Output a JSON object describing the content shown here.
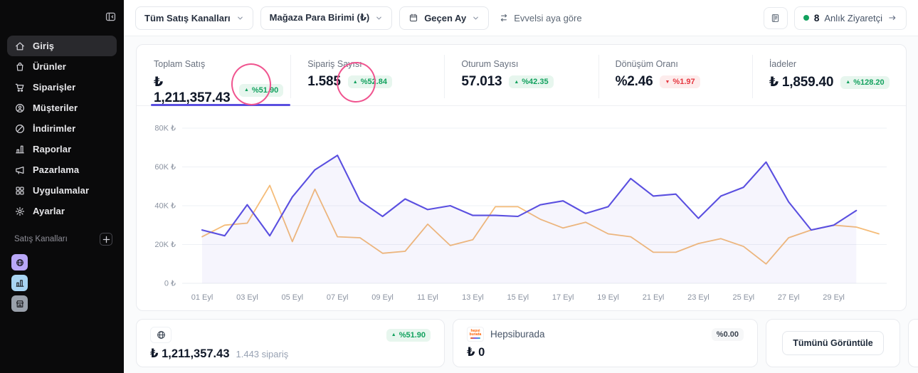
{
  "colors": {
    "purple": "#5a4fe0",
    "orange": "#f5bc78",
    "green": "#12a15e",
    "green-bg": "#e7f6ee",
    "red": "#e5363f",
    "red-bg": "#fdecec",
    "pink": "#f0548f",
    "sidebar-bg": "#0a0a0b"
  },
  "sidebar": {
    "items": [
      {
        "label": "Giriş",
        "icon": "home",
        "active": true
      },
      {
        "label": "Ürünler",
        "icon": "bag"
      },
      {
        "label": "Siparişler",
        "icon": "cart"
      },
      {
        "label": "Müşteriler",
        "icon": "customer"
      },
      {
        "label": "İndirimler",
        "icon": "discount"
      },
      {
        "label": "Raporlar",
        "icon": "bar-chart"
      },
      {
        "label": "Pazarlama",
        "icon": "megaphone"
      },
      {
        "label": "Uygulamalar",
        "icon": "apps-grid"
      },
      {
        "label": "Ayarlar",
        "icon": "gear"
      }
    ],
    "channels_label": "Satış Kanalları",
    "channels": [
      {
        "name": "online-store",
        "icon": "globe",
        "bg": "#b9a7f8"
      },
      {
        "name": "mobile-app",
        "icon": "chart-box",
        "bg": "#a8d4f2"
      },
      {
        "name": "physical-store",
        "icon": "storefront",
        "bg": "#9aa1ab"
      }
    ]
  },
  "topbar": {
    "filters": [
      {
        "label": "Tüm Satış Kanalları"
      },
      {
        "label": "Mağaza Para Birimi (₺)"
      },
      {
        "label": "Geçen Ay",
        "icon": "calendar"
      }
    ],
    "compare_label": "Evvelsi aya göre",
    "visitors": {
      "count": "8",
      "label": "Anlık Ziyaretçi"
    }
  },
  "stats": [
    {
      "label": "Toplam Satış",
      "value": "₺ 1,211,357.43",
      "arrow": "▲",
      "delta": "%51.90",
      "direction": "up",
      "annotated": true,
      "active": true
    },
    {
      "label": "Sipariş Sayısı",
      "value": "1.585",
      "arrow": "▲",
      "delta": "%52.84",
      "direction": "up",
      "annotated": true
    },
    {
      "label": "Oturum Sayısı",
      "value": "57.013",
      "arrow": "▲",
      "delta": "%42.35",
      "direction": "up"
    },
    {
      "label": "Dönüşüm Oranı",
      "value": "%2.46",
      "arrow": "▼",
      "delta": "%1.97",
      "direction": "down"
    },
    {
      "label": "İadeler",
      "value": "₺ 1,859.40",
      "arrow": "▲",
      "delta": "%128.20",
      "direction": "up"
    }
  ],
  "chart_data": {
    "type": "line",
    "ylim": [
      0,
      80000
    ],
    "yticks": [
      "0 ₺",
      "20K ₺",
      "40K ₺",
      "60K ₺",
      "80K ₺"
    ],
    "xticks": [
      "01 Eyl",
      "03 Eyl",
      "05 Eyl",
      "07 Eyl",
      "09 Eyl",
      "11 Eyl",
      "13 Eyl",
      "15 Eyl",
      "17 Eyl",
      "19 Eyl",
      "21 Eyl",
      "23 Eyl",
      "25 Eyl",
      "27 Eyl",
      "29 Eyl"
    ],
    "grid": true,
    "legend": "none",
    "series": [
      {
        "name": "Geçen Ay",
        "color": "#5a4fe0",
        "fill": true,
        "values": [
          27500,
          24500,
          40500,
          24500,
          44500,
          58500,
          66000,
          42500,
          34500,
          43500,
          38000,
          40000,
          35000,
          35000,
          34500,
          40500,
          42500,
          36000,
          39500,
          54000,
          45000,
          46000,
          33500,
          45000,
          49500,
          62500,
          42000,
          27500,
          30000,
          37500
        ]
      },
      {
        "name": "Evvelsi Ay",
        "color": "#f5bc78",
        "fill": false,
        "values": [
          24000,
          30000,
          31000,
          50500,
          21500,
          48500,
          24000,
          23500,
          15500,
          16500,
          30500,
          19500,
          22500,
          39500,
          39500,
          33000,
          28500,
          31500,
          25500,
          24000,
          16000,
          16000,
          20500,
          23000,
          19000,
          10000,
          23500,
          27500,
          30000,
          29000,
          25500
        ]
      }
    ]
  },
  "bottom_cards": [
    {
      "icon": "globe",
      "value": "₺ 1,211,357.43",
      "sub": "1.443 sipariş",
      "delta": "%51.90",
      "arrow": "▲",
      "direction": "up"
    },
    {
      "icon": "hepsiburada",
      "name": "Hepsiburada",
      "logo_line1": "hepsi",
      "logo_line2": "burada",
      "value": "₺ 0",
      "delta": "%0.00",
      "arrow": "",
      "direction": "flat"
    },
    {
      "button_label": "Tümünü Görüntüle"
    }
  ]
}
